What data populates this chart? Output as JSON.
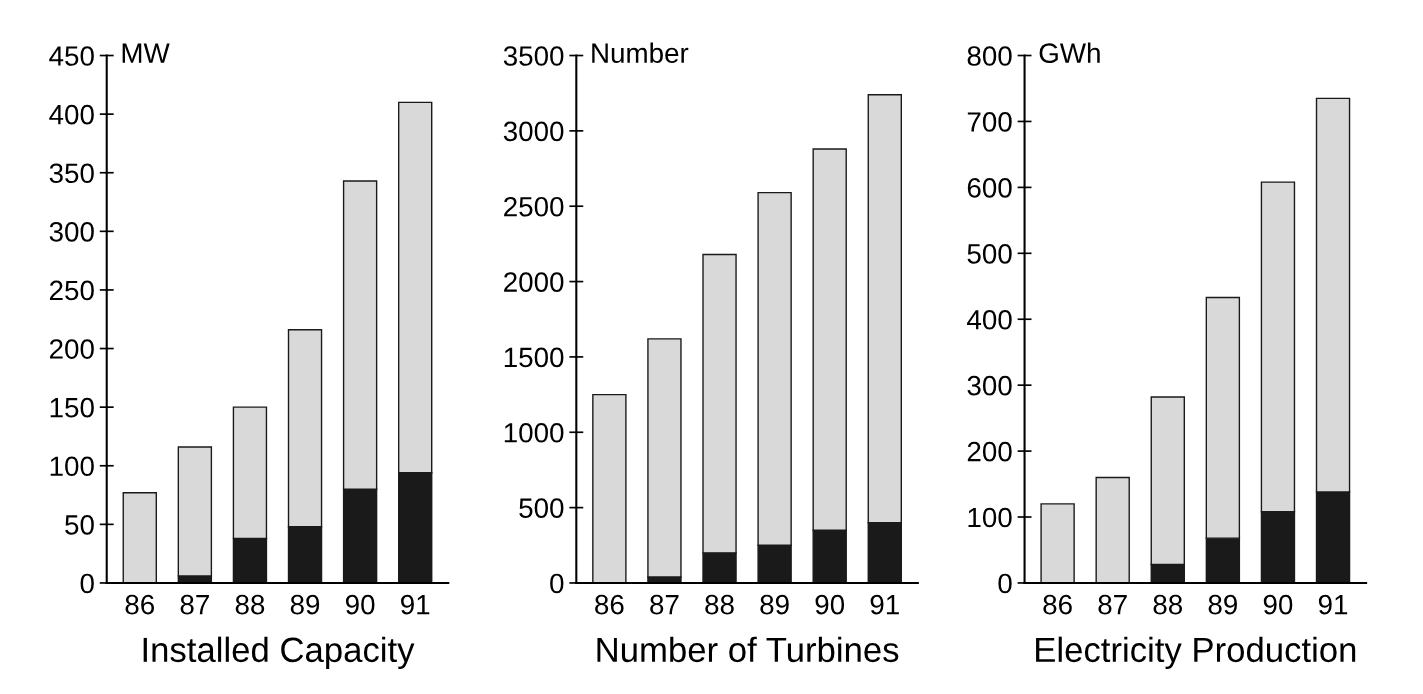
{
  "chart_data": [
    {
      "type": "bar",
      "stacked": true,
      "categories": [
        "86",
        "87",
        "88",
        "89",
        "90",
        "91"
      ],
      "ylabel": "MW",
      "xlabel": "Installed Capacity",
      "ylim": [
        0,
        450
      ],
      "yticks": [
        0,
        50,
        100,
        150,
        200,
        250,
        300,
        350,
        400,
        450
      ],
      "grid": false,
      "legend": false,
      "series": [
        {
          "color": "#1a1a1a",
          "values": [
            0,
            6,
            38,
            48,
            80,
            94
          ]
        },
        {
          "color": "#d9d9d9",
          "values": [
            77,
            110,
            112,
            168,
            263,
            316
          ]
        }
      ]
    },
    {
      "type": "bar",
      "stacked": true,
      "categories": [
        "86",
        "87",
        "88",
        "89",
        "90",
        "91"
      ],
      "ylabel": "Number",
      "xlabel": "Number of Turbines",
      "ylim": [
        0,
        3500
      ],
      "yticks": [
        0,
        500,
        1000,
        1500,
        2000,
        2500,
        3000,
        3500
      ],
      "grid": false,
      "legend": false,
      "series": [
        {
          "color": "#1a1a1a",
          "values": [
            0,
            40,
            200,
            250,
            350,
            400
          ]
        },
        {
          "color": "#d9d9d9",
          "values": [
            1250,
            1580,
            1980,
            2340,
            2530,
            2840
          ]
        }
      ]
    },
    {
      "type": "bar",
      "stacked": true,
      "categories": [
        "86",
        "87",
        "88",
        "89",
        "90",
        "91"
      ],
      "ylabel": "GWh",
      "xlabel": "Electricity Production",
      "ylim": [
        0,
        800
      ],
      "yticks": [
        0,
        100,
        200,
        300,
        400,
        500,
        600,
        700,
        800
      ],
      "grid": false,
      "legend": false,
      "series": [
        {
          "color": "#1a1a1a",
          "values": [
            0,
            0,
            28,
            68,
            108,
            138
          ]
        },
        {
          "color": "#d9d9d9",
          "values": [
            120,
            160,
            254,
            365,
            500,
            597
          ]
        }
      ]
    }
  ]
}
